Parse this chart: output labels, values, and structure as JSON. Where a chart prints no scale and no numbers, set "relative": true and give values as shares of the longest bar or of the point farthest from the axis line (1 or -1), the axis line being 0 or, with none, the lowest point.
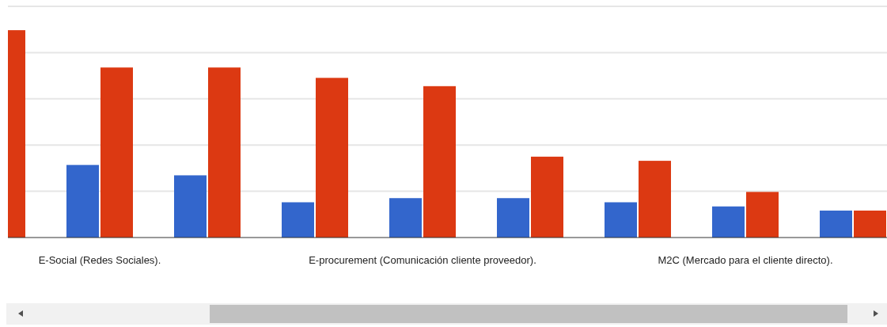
{
  "chart_data": {
    "type": "bar",
    "relative": true,
    "grid": true,
    "categories": [
      null,
      "E-Social (Redes Sociales).",
      null,
      null,
      "E-procurement (Comunicación cliente proveedor).",
      null,
      null,
      "M2C (Mercado para el cliente directo).",
      null
    ],
    "series": [
      {
        "color": "#3366cc",
        "values": [
          null,
          0.35,
          0.3,
          0.17,
          0.19,
          0.19,
          0.17,
          0.15,
          0.13
        ]
      },
      {
        "color": "#dc3912",
        "values": [
          1,
          0.82,
          0.82,
          0.77,
          0.73,
          0.39,
          0.37,
          0.22,
          0.13
        ]
      }
    ]
  }
}
